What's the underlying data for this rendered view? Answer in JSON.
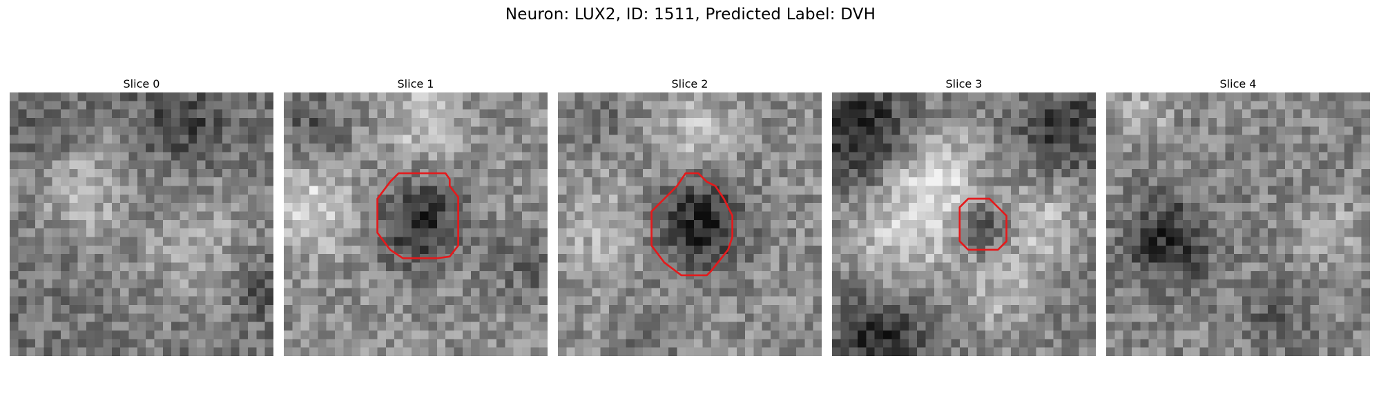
{
  "figure": {
    "title": "Neuron: LUX2, ID: 1511, Predicted Label: DVH"
  },
  "image_style": {
    "colormap": "gray",
    "grid_size": 31,
    "contour_color": "#e41a1c"
  },
  "slices": [
    {
      "title": "Slice 0",
      "has_contour": false
    },
    {
      "title": "Slice 1",
      "has_contour": true,
      "contour": [
        [
          16.5,
          9.5
        ],
        [
          19.0,
          9.5
        ],
        [
          19.5,
          10.2
        ],
        [
          19.5,
          11.0
        ],
        [
          20.5,
          12.3
        ],
        [
          20.5,
          18.0
        ],
        [
          19.5,
          19.3
        ],
        [
          18.0,
          19.5
        ],
        [
          14.0,
          19.5
        ],
        [
          12.5,
          18.5
        ],
        [
          11.0,
          16.5
        ],
        [
          11.0,
          12.5
        ],
        [
          12.5,
          10.5
        ],
        [
          13.5,
          9.5
        ]
      ]
    },
    {
      "title": "Slice 2",
      "has_contour": true,
      "contour": [
        [
          15.0,
          9.5
        ],
        [
          16.5,
          9.5
        ],
        [
          17.5,
          10.5
        ],
        [
          18.5,
          11.0
        ],
        [
          19.5,
          12.5
        ],
        [
          20.5,
          14.5
        ],
        [
          20.5,
          17.0
        ],
        [
          20.0,
          18.5
        ],
        [
          18.0,
          21.0
        ],
        [
          17.5,
          21.5
        ],
        [
          14.5,
          21.5
        ],
        [
          12.5,
          20.0
        ],
        [
          11.0,
          18.0
        ],
        [
          11.0,
          14.0
        ],
        [
          12.5,
          12.5
        ],
        [
          14.0,
          11.0
        ]
      ]
    },
    {
      "title": "Slice 3",
      "has_contour": true,
      "contour": [
        [
          16.0,
          12.5
        ],
        [
          18.5,
          12.5
        ],
        [
          20.5,
          14.5
        ],
        [
          20.5,
          17.5
        ],
        [
          19.5,
          18.5
        ],
        [
          16.0,
          18.5
        ],
        [
          15.0,
          17.5
        ],
        [
          15.0,
          13.5
        ]
      ]
    },
    {
      "title": "Slice 4",
      "has_contour": false
    }
  ]
}
